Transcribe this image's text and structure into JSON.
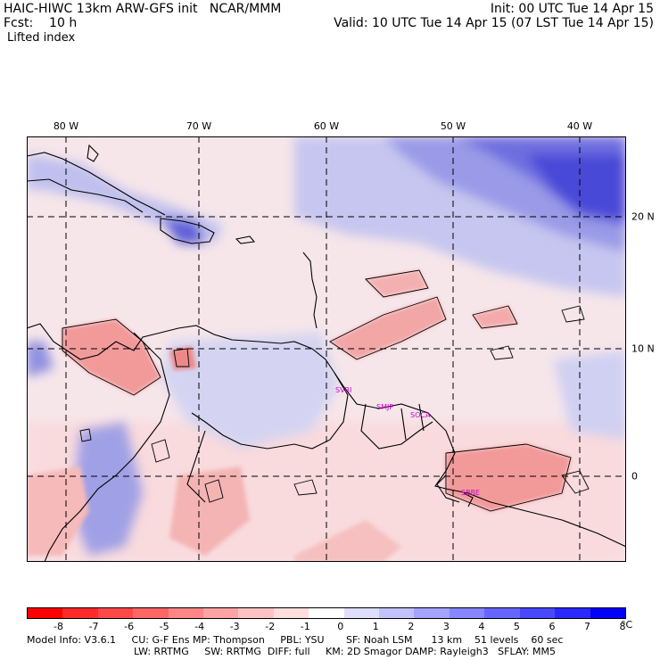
{
  "header": {
    "model": "HAIC-HIWC 13km ARW-GFS init   NCAR/MMM",
    "init": "Init: 00 UTC Tue 14 Apr 15",
    "fcst": "Fcst:    10 h",
    "valid": "Valid: 10 UTC Tue 14 Apr 15 (07 LST Tue 14 Apr 15)",
    "field": "Lifted index"
  },
  "map": {
    "lon_labels": [
      "80 W",
      "70 W",
      "60 W",
      "50 W",
      "40 W"
    ],
    "lat_labels": [
      "20 N",
      "10 N",
      "0"
    ],
    "stations": [
      "SVBI",
      "SMJP",
      "SOCA",
      "SBBE"
    ],
    "colors": {
      "positive_strong": "#3a3adf",
      "positive_mid": "#8c8ce8",
      "positive_light": "#c8c8f2",
      "neutral": "#f2eaf0",
      "negative_light": "#fbd0d0",
      "negative_mid": "#f08888",
      "contour": "#000000",
      "station": "#cc00cc"
    }
  },
  "colorbar": {
    "ticks": [
      "-8",
      "-7",
      "-6",
      "-5",
      "-4",
      "-3",
      "-2",
      "-1",
      "0",
      "1",
      "2",
      "3",
      "4",
      "5",
      "6",
      "7",
      "8"
    ],
    "unit": "°C",
    "colors": [
      "#ff0000",
      "#ff2a2a",
      "#ff4848",
      "#ff6666",
      "#ff8686",
      "#ffa4a4",
      "#ffc2c2",
      "#ffdede",
      "#ffffff",
      "#dedeff",
      "#c2c2ff",
      "#a4a4ff",
      "#8686ff",
      "#6666ff",
      "#4848ff",
      "#2a2aff",
      "#0000ff"
    ]
  },
  "footer": {
    "line1": "Model Info: V3.6.1     CU: G-F Ens MP: Thompson     PBL: YSU       SF: Noah LSM      13 km    51 levels    60 sec",
    "line2": "LW: RRTMG     SW: RRTMG  DIFF: full     KM: 2D Smagor DAMP: Rayleigh3   SFLAY: MM5"
  }
}
